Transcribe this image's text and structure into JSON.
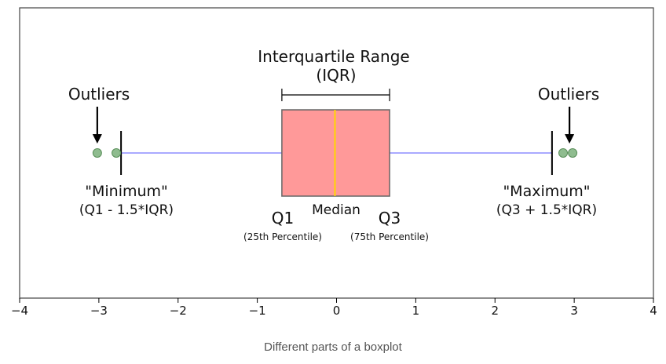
{
  "caption": "Different parts of a boxplot",
  "chart_data": {
    "type": "boxplot",
    "orientation": "horizontal",
    "xlim": [
      -4,
      4
    ],
    "ticks": [
      -4,
      -3,
      -2,
      -1,
      0,
      1,
      2,
      3,
      4
    ],
    "tick_labels": [
      "−4",
      "−3",
      "−2",
      "−1",
      "0",
      "1",
      "2",
      "3",
      "4"
    ],
    "box": {
      "q1": -0.69,
      "median": -0.02,
      "q3": 0.67
    },
    "whiskers": {
      "min": -2.72,
      "max": 2.72
    },
    "outliers": [
      -3.02,
      -2.78,
      2.86,
      2.98
    ],
    "colors": {
      "box_fill": "#ff9999",
      "box_edge": "#666666",
      "median": "#ffd700",
      "whisker": "#aaaaff",
      "outlier_fill": "#8fbc8f",
      "outlier_edge": "#5a8f5a"
    },
    "annotations": {
      "iqr_title": "Interquartile Range",
      "iqr_abbr": "(IQR)",
      "outliers_left": "Outliers",
      "outliers_right": "Outliers",
      "minimum": "\"Minimum\"",
      "minimum_formula": "(Q1 - 1.5*IQR)",
      "maximum": "\"Maximum\"",
      "maximum_formula": "(Q3 + 1.5*IQR)",
      "q1": "Q1",
      "q1_note": "(25th Percentile)",
      "median": "Median",
      "q3": "Q3",
      "q3_note": "(75th Percentile)"
    }
  }
}
